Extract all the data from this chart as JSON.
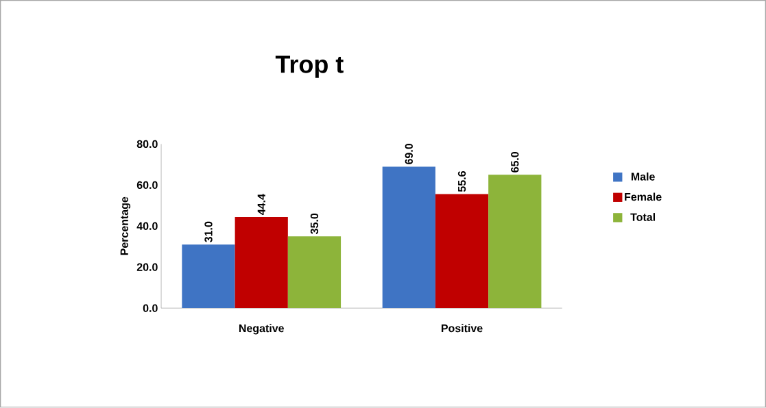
{
  "chart_data": {
    "type": "bar",
    "title": "Trop t",
    "ylabel": "Percentage",
    "categories": [
      "Negative",
      "Positive"
    ],
    "series": [
      {
        "name": "Male",
        "color": "#3f74c4",
        "values": [
          31.0,
          69.0
        ],
        "value_labels": [
          "31.0",
          "69.0"
        ]
      },
      {
        "name": "Female",
        "color": "#c00000",
        "values": [
          44.4,
          55.6
        ],
        "value_labels": [
          "44.4",
          "55.6"
        ]
      },
      {
        "name": "Total",
        "color": "#8db43a",
        "values": [
          35.0,
          65.0
        ],
        "value_labels": [
          "35.0",
          "65.0"
        ]
      }
    ],
    "ylim": [
      0,
      80
    ],
    "yticks": [
      {
        "value": 0,
        "label": "0.0"
      },
      {
        "value": 20,
        "label": "20.0"
      },
      {
        "value": 40,
        "label": "40.0"
      },
      {
        "value": 60,
        "label": "60.0"
      },
      {
        "value": 80,
        "label": "80.0"
      }
    ],
    "grid": false,
    "legend": "right"
  }
}
